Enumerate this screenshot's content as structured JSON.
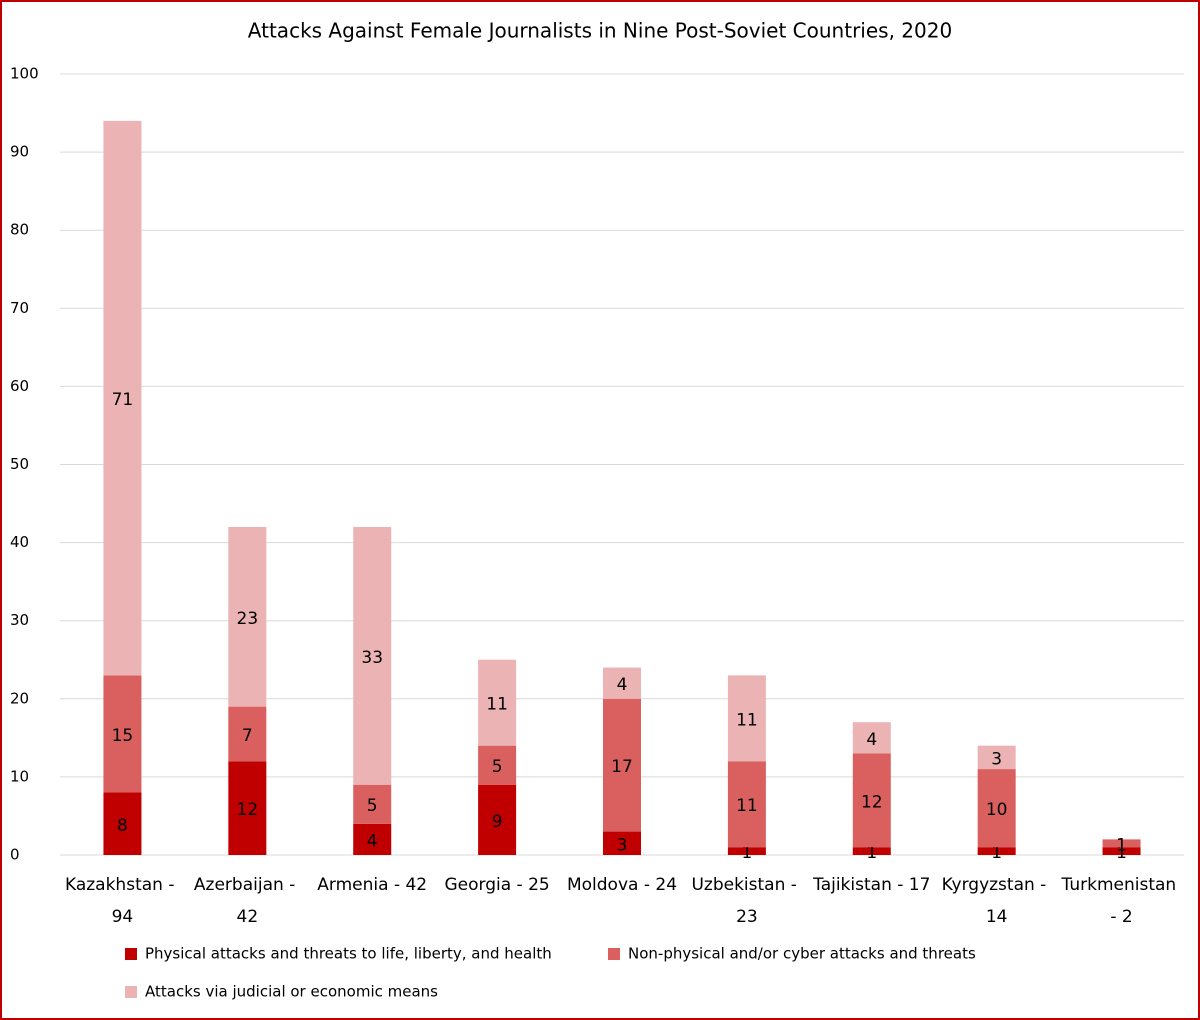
{
  "chart_data": {
    "type": "bar",
    "stacked": true,
    "title": "Attacks Against Female Journalists in Nine Post-Soviet Countries, 2020",
    "categories": [
      "Kazakhstan - 94",
      "Azerbaijan - 42",
      "Armenia - 42",
      "Georgia - 25",
      "Moldova - 24",
      "Uzbekistan - 23",
      "Tajikistan - 17",
      "Kyrgyzstan - 14",
      "Turkmenistan - 2"
    ],
    "series": [
      {
        "name": "Physical attacks and threats to life, liberty, and health",
        "color": "#c00000",
        "values": [
          8,
          12,
          4,
          9,
          3,
          1,
          1,
          1,
          1
        ]
      },
      {
        "name": "Non-physical and/or cyber attacks and threats",
        "color": "#d9605e",
        "values": [
          15,
          7,
          5,
          5,
          17,
          11,
          12,
          10,
          1
        ]
      },
      {
        "name": "Attacks via judicial or economic means",
        "color": "#ebb3b3",
        "values": [
          71,
          23,
          33,
          11,
          4,
          11,
          4,
          3,
          0
        ]
      }
    ],
    "ylim": [
      0,
      100
    ],
    "yticks": [
      0,
      10,
      20,
      30,
      40,
      50,
      60,
      70,
      80,
      90,
      100
    ],
    "grid": true
  }
}
